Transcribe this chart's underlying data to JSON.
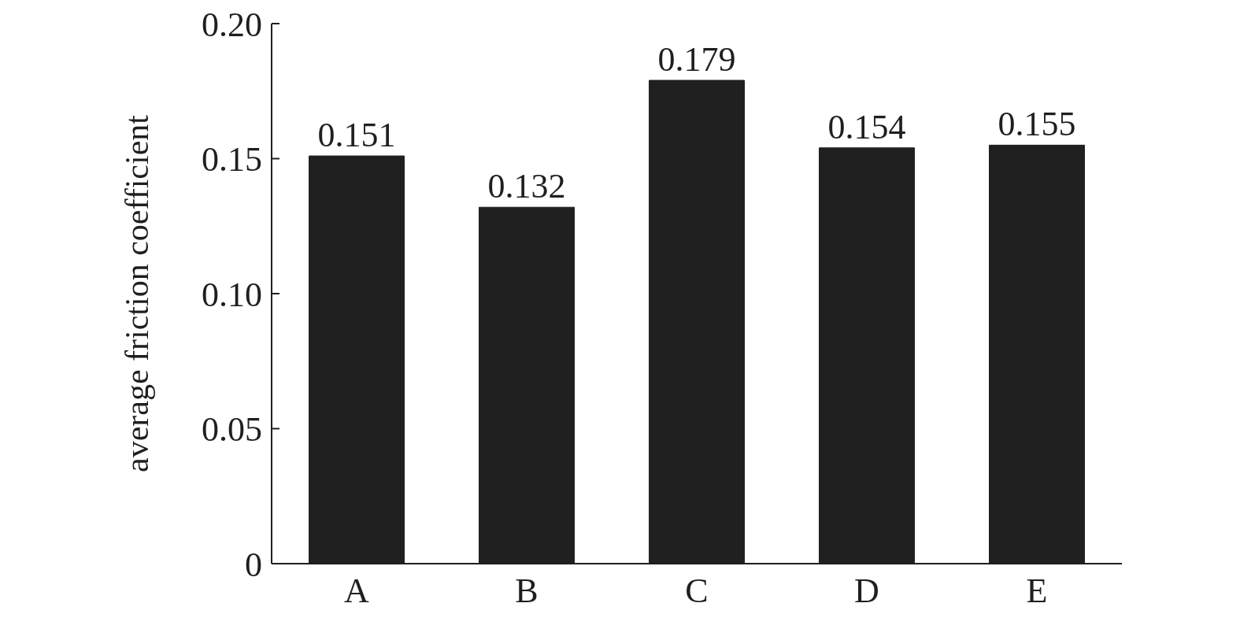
{
  "chart_data": {
    "type": "bar",
    "ylabel": "average friction coefficient",
    "categories": [
      "A",
      "B",
      "C",
      "D",
      "E"
    ],
    "values": [
      0.151,
      0.132,
      0.179,
      0.154,
      0.155
    ],
    "color": "#1f201f",
    "ylim": [
      0,
      0.2
    ],
    "yticks": [
      0,
      0.05,
      {
        "value": 0.1,
        "label": "0.10"
      },
      0.15,
      {
        "value": 0.2,
        "label": "0.20"
      }
    ],
    "data_labels": true,
    "grid": false,
    "legend": false
  }
}
